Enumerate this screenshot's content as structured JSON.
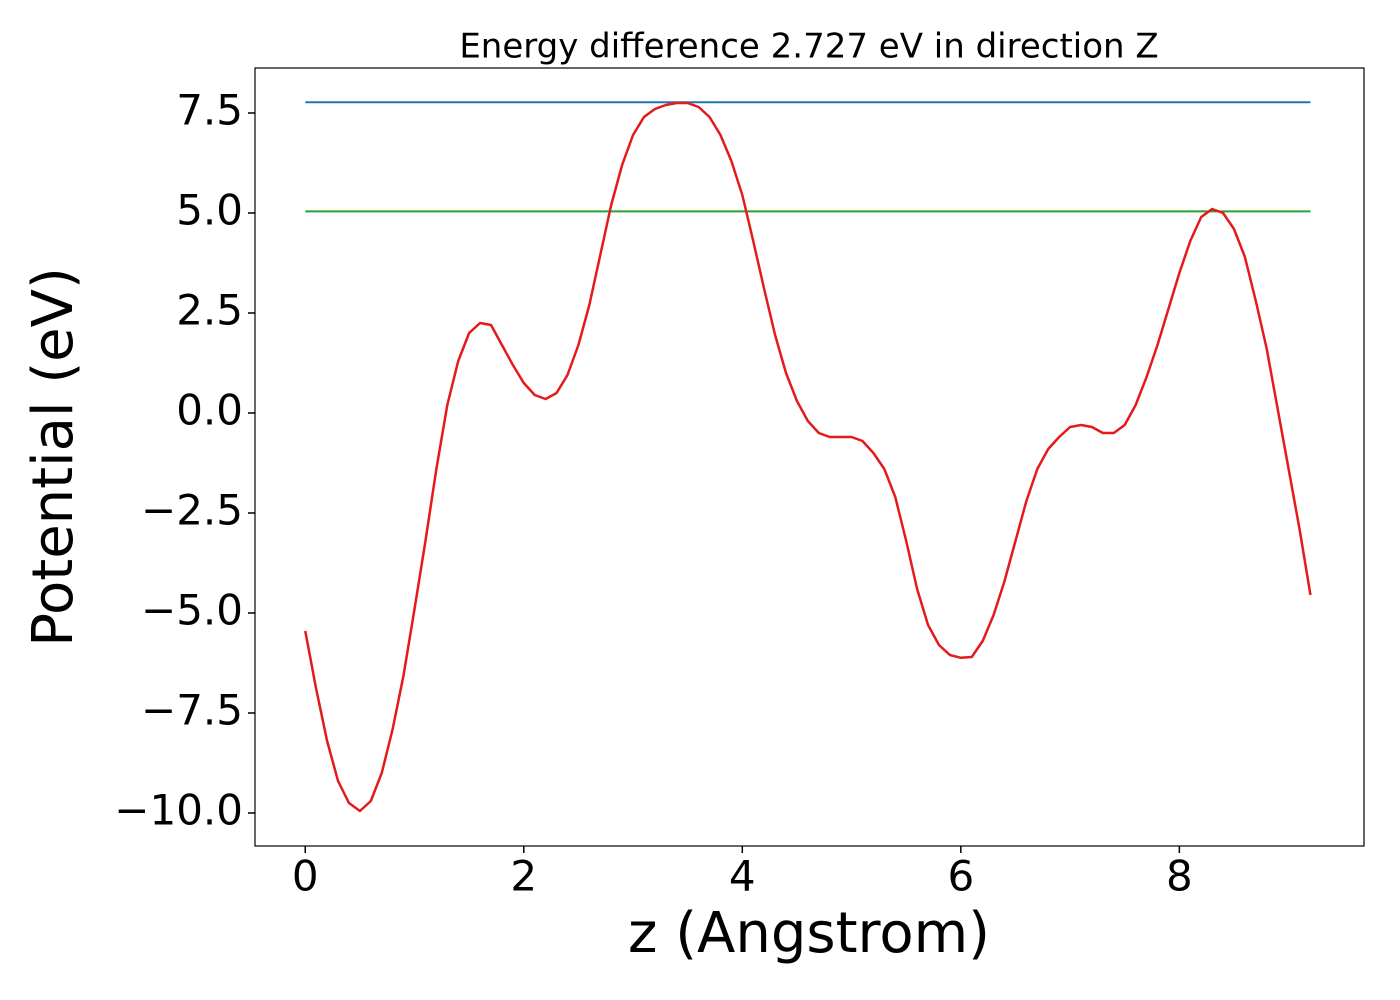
{
  "chart_data": {
    "type": "line",
    "title": "Energy difference 2.727 eV in direction Z",
    "x_label": "z (Angstrom)",
    "y_label": "Potential (eV)",
    "x": [
      0,
      0.1,
      0.2,
      0.3,
      0.4,
      0.5,
      0.6,
      0.7,
      0.8,
      0.9,
      1.0,
      1.1,
      1.2,
      1.3,
      1.4,
      1.5,
      1.6,
      1.7,
      1.8,
      1.9,
      2.0,
      2.1,
      2.2,
      2.3,
      2.4,
      2.5,
      2.6,
      2.7,
      2.8,
      2.9,
      3.0,
      3.1,
      3.2,
      3.3,
      3.4,
      3.5,
      3.6,
      3.7,
      3.8,
      3.9,
      4.0,
      4.1,
      4.2,
      4.3,
      4.4,
      4.5,
      4.6,
      4.7,
      4.8,
      4.9,
      5.0,
      5.1,
      5.2,
      5.3,
      5.4,
      5.5,
      5.6,
      5.7,
      5.8,
      5.9,
      6.0,
      6.1,
      6.2,
      6.3,
      6.4,
      6.5,
      6.6,
      6.7,
      6.8,
      6.9,
      7.0,
      7.1,
      7.2,
      7.3,
      7.4,
      7.5,
      7.6,
      7.7,
      7.8,
      7.9,
      8.0,
      8.1,
      8.2,
      8.3,
      8.4,
      8.5,
      8.6,
      8.7,
      8.8,
      8.9,
      9.0,
      9.1,
      9.2
    ],
    "series": [
      {
        "color": "#e41a1c",
        "values": [
          -5.45,
          -6.9,
          -8.2,
          -9.2,
          -9.75,
          -9.95,
          -9.7,
          -9.0,
          -7.9,
          -6.55,
          -4.9,
          -3.2,
          -1.4,
          0.2,
          1.3,
          2.0,
          2.25,
          2.2,
          1.7,
          1.2,
          0.75,
          0.45,
          0.35,
          0.5,
          0.95,
          1.7,
          2.7,
          3.95,
          5.2,
          6.2,
          6.95,
          7.4,
          7.6,
          7.7,
          7.75,
          7.75,
          7.65,
          7.4,
          6.95,
          6.3,
          5.45,
          4.3,
          3.1,
          1.95,
          1.0,
          0.3,
          -0.2,
          -0.5,
          -0.6,
          -0.6,
          -0.6,
          -0.7,
          -1.0,
          -1.4,
          -2.1,
          -3.2,
          -4.4,
          -5.3,
          -5.8,
          -6.05,
          -6.12,
          -6.1,
          -5.7,
          -5.05,
          -4.2,
          -3.2,
          -2.2,
          -1.4,
          -0.9,
          -0.6,
          -0.35,
          -0.3,
          -0.35,
          -0.5,
          -0.5,
          -0.3,
          0.2,
          0.9,
          1.7,
          2.6,
          3.5,
          4.3,
          4.9,
          5.1,
          5.0,
          4.6,
          3.9,
          2.8,
          1.6,
          0.1,
          -1.4,
          -2.9,
          -4.55
        ]
      }
    ],
    "hlines": [
      {
        "y": 7.77,
        "color": "#1f77b4"
      },
      {
        "y": 5.04,
        "color": "#2ca02c"
      }
    ],
    "xlim": [
      -0.46,
      9.69
    ],
    "ylim": [
      -10.825,
      8.625
    ],
    "xticks": [
      0,
      2,
      4,
      6,
      8
    ],
    "yticks": [
      {
        "value": -10,
        "label": "−10.0"
      },
      {
        "value": -7.5,
        "label": "−7.5"
      },
      {
        "value": -5,
        "label": "−5.0"
      },
      {
        "value": -2.5,
        "label": "−2.5"
      },
      {
        "value": 0,
        "label": "0.0"
      },
      2.5,
      {
        "value": 5,
        "label": "5.0"
      },
      7.5
    ]
  }
}
